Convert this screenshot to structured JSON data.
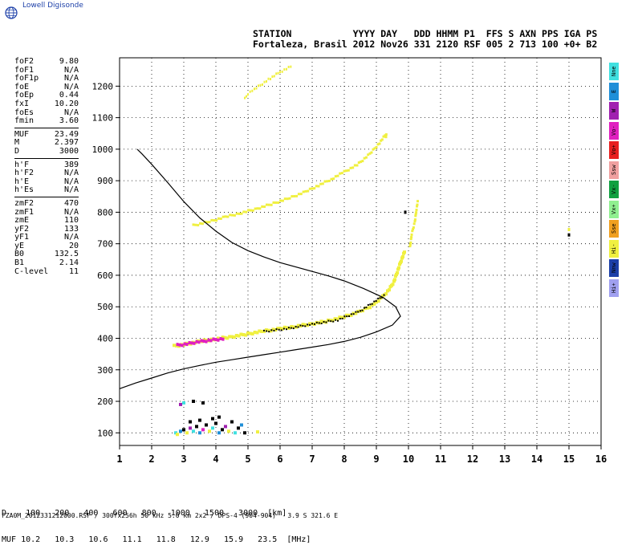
{
  "header": {
    "logo_text": "Lowell Digisonde",
    "row1": "STATION           YYYY DAY   DDD HHMM P1  FFS S AXN PPS IGA PS",
    "row2": "Fortaleza, Brasil 2012 Nov26 331 2120 RSF 005 2 713 100 +0+ B2"
  },
  "params": {
    "group1": [
      {
        "label": "foF2",
        "value": "9.80"
      },
      {
        "label": "foF1",
        "value": "N/A"
      },
      {
        "label": "foF1p",
        "value": "N/A"
      },
      {
        "label": "foE",
        "value": "N/A"
      },
      {
        "label": "foEp",
        "value": "0.44"
      },
      {
        "label": "fxI",
        "value": "10.20"
      },
      {
        "label": "foEs",
        "value": "N/A"
      },
      {
        "label": "fmin",
        "value": "3.60"
      }
    ],
    "group2": [
      {
        "label": "MUF",
        "value": "23.49"
      },
      {
        "label": "M",
        "value": "2.397"
      },
      {
        "label": "D",
        "value": "3000"
      }
    ],
    "group3": [
      {
        "label": "h'F",
        "value": "389"
      },
      {
        "label": "h'F2",
        "value": "N/A"
      },
      {
        "label": "h'E",
        "value": "N/A"
      },
      {
        "label": "h'Es",
        "value": "N/A"
      }
    ],
    "group4": [
      {
        "label": "zmF2",
        "value": "470"
      },
      {
        "label": "zmF1",
        "value": "N/A"
      },
      {
        "label": "zmE",
        "value": "110"
      },
      {
        "label": "yF2",
        "value": "133"
      },
      {
        "label": "yF1",
        "value": "N/A"
      },
      {
        "label": "yE",
        "value": "20"
      },
      {
        "label": "B0",
        "value": "132.5"
      },
      {
        "label": "B1",
        "value": "2.14"
      },
      {
        "label": "C-level",
        "value": "11"
      }
    ]
  },
  "legend": [
    {
      "label": "Nne",
      "color": "#40e0e0"
    },
    {
      "label": "E",
      "color": "#1f8fd8"
    },
    {
      "label": "W",
      "color": "#a020b0"
    },
    {
      "label": "Vo-",
      "color": "#e020c0"
    },
    {
      "label": "Vo+",
      "color": "#e82020"
    },
    {
      "label": "Ssw",
      "color": "#f0a0a0"
    },
    {
      "label": "Vx-",
      "color": "#10a040"
    },
    {
      "label": "Vx+",
      "color": "#90f090"
    },
    {
      "label": "Sse",
      "color": "#f0a020"
    },
    {
      "label": "Hi-",
      "color": "#f0f040"
    },
    {
      "label": "Nnw",
      "color": "#1c3fa8"
    },
    {
      "label": "Hi+",
      "color": "#a0a0f0"
    }
  ],
  "muf_table": {
    "d_label": "D",
    "d_values": [
      "100",
      "200",
      "400",
      "600",
      "800",
      "1000",
      "1500",
      "3000"
    ],
    "d_unit": "[km]",
    "muf_label": "MUF",
    "muf_values": [
      "10.2",
      "10.3",
      "10.6",
      "11.1",
      "11.8",
      "12.9",
      "15.9",
      "23.5"
    ],
    "muf_unit": "[MHz]"
  },
  "footer": "FZA0M_2012331212000.RSF / 300fx256h 50 kHz 5.0 km 2x2 / DPS-4 (904-904)   3.9 S 321.6 E",
  "chart_data": {
    "type": "scatter",
    "xlim": [
      1,
      16
    ],
    "ylim": [
      60,
      1290
    ],
    "xticks": [
      1,
      2,
      3,
      4,
      5,
      6,
      7,
      8,
      9,
      10,
      11,
      12,
      13,
      14,
      15,
      16
    ],
    "yticks": [
      100,
      200,
      300,
      400,
      500,
      600,
      700,
      800,
      900,
      1000,
      1100,
      1200
    ],
    "grid": true,
    "profile_curve": [
      [
        1.0,
        240
      ],
      [
        1.5,
        258
      ],
      [
        2.0,
        274
      ],
      [
        2.5,
        290
      ],
      [
        3.0,
        303
      ],
      [
        3.5,
        314
      ],
      [
        4.0,
        324
      ],
      [
        4.5,
        332
      ],
      [
        5.0,
        340
      ],
      [
        5.5,
        348
      ],
      [
        6.0,
        356
      ],
      [
        6.5,
        364
      ],
      [
        7.0,
        372
      ],
      [
        7.5,
        380
      ],
      [
        8.0,
        390
      ],
      [
        8.5,
        403
      ],
      [
        9.0,
        420
      ],
      [
        9.5,
        442
      ],
      [
        9.75,
        470
      ],
      [
        9.6,
        500
      ],
      [
        9.2,
        530
      ],
      [
        8.6,
        558
      ],
      [
        8.0,
        582
      ],
      [
        7.5,
        598
      ],
      [
        7.0,
        612
      ],
      [
        6.0,
        640
      ],
      [
        5.5,
        658
      ],
      [
        5.0,
        678
      ],
      [
        4.5,
        704
      ],
      [
        4.0,
        740
      ],
      [
        3.5,
        782
      ],
      [
        3.0,
        834
      ],
      [
        2.5,
        894
      ],
      [
        2.0,
        952
      ],
      [
        1.7,
        985
      ],
      [
        1.55,
        1000
      ]
    ],
    "trace_f2_o": {
      "color": "#f0f040",
      "points": [
        [
          2.7,
          375
        ],
        [
          3.0,
          380
        ],
        [
          3.5,
          390
        ],
        [
          4.0,
          398
        ],
        [
          4.5,
          405
        ],
        [
          5.0,
          414
        ],
        [
          5.5,
          423
        ],
        [
          6.0,
          430
        ],
        [
          6.5,
          438
        ],
        [
          7.0,
          446
        ],
        [
          7.5,
          455
        ],
        [
          8.0,
          468
        ],
        [
          8.5,
          485
        ],
        [
          8.8,
          500
        ],
        [
          9.0,
          515
        ],
        [
          9.2,
          532
        ],
        [
          9.4,
          555
        ],
        [
          9.55,
          580
        ],
        [
          9.65,
          610
        ],
        [
          9.75,
          640
        ],
        [
          9.9,
          680
        ]
      ]
    },
    "trace_f2_x": {
      "color": "#f0f040",
      "points": [
        [
          10.05,
          690
        ],
        [
          10.1,
          730
        ],
        [
          10.2,
          770
        ],
        [
          10.25,
          810
        ],
        [
          10.3,
          840
        ]
      ]
    },
    "trace_multi_1": {
      "color": "#f0f040",
      "points": [
        [
          3.3,
          758
        ],
        [
          3.8,
          770
        ],
        [
          4.3,
          785
        ],
        [
          4.8,
          798
        ],
        [
          5.3,
          812
        ],
        [
          5.8,
          828
        ],
        [
          6.3,
          845
        ],
        [
          6.8,
          865
        ],
        [
          7.2,
          885
        ],
        [
          7.6,
          905
        ],
        [
          8.0,
          928
        ],
        [
          8.4,
          950
        ],
        [
          8.8,
          985
        ],
        [
          9.1,
          1020
        ],
        [
          9.35,
          1055
        ]
      ]
    },
    "trace_multi_2": {
      "color": "#f0f040",
      "points": [
        [
          4.9,
          1160
        ],
        [
          5.0,
          1175
        ],
        [
          5.2,
          1190
        ],
        [
          5.7,
          1225
        ],
        [
          6.0,
          1245
        ],
        [
          6.4,
          1265
        ]
      ]
    },
    "trace_magenta": {
      "color": "#e020c0",
      "points": [
        [
          2.8,
          378
        ],
        [
          3.1,
          382
        ],
        [
          3.4,
          388
        ],
        [
          3.7,
          392
        ],
        [
          4.0,
          396
        ],
        [
          4.3,
          399
        ]
      ]
    },
    "trace_dark": {
      "color": "#000000",
      "points": [
        [
          5.5,
          422
        ],
        [
          6.2,
          430
        ],
        [
          7.0,
          445
        ],
        [
          7.8,
          458
        ],
        [
          8.5,
          487
        ],
        [
          9.3,
          540
        ]
      ]
    },
    "e_region_clutter": {
      "points": [
        [
          2.75,
          100,
          "#40e0e0"
        ],
        [
          2.9,
          105,
          "#1f8fd8"
        ],
        [
          3.0,
          110,
          "#000000"
        ],
        [
          3.1,
          100,
          "#f0f040"
        ],
        [
          3.2,
          115,
          "#a020b0"
        ],
        [
          3.3,
          105,
          "#40e0e0"
        ],
        [
          3.4,
          120,
          "#000000"
        ],
        [
          3.5,
          100,
          "#1f8fd8"
        ],
        [
          3.6,
          110,
          "#e020c0"
        ],
        [
          3.7,
          125,
          "#000000"
        ],
        [
          3.8,
          105,
          "#f0f040"
        ],
        [
          3.9,
          115,
          "#40e0e0"
        ],
        [
          4.0,
          130,
          "#000000"
        ],
        [
          4.1,
          100,
          "#1f8fd8"
        ],
        [
          4.2,
          110,
          "#000000"
        ],
        [
          4.3,
          120,
          "#a020b0"
        ],
        [
          4.4,
          105,
          "#f0f040"
        ],
        [
          4.5,
          135,
          "#000000"
        ],
        [
          4.6,
          100,
          "#40e0e0"
        ],
        [
          4.7,
          115,
          "#000000"
        ],
        [
          4.8,
          125,
          "#1f8fd8"
        ],
        [
          3.5,
          140,
          "#000000"
        ],
        [
          3.9,
          145,
          "#000000"
        ],
        [
          4.1,
          150,
          "#000000"
        ],
        [
          3.2,
          135,
          "#000000"
        ],
        [
          2.8,
          95,
          "#f0f040"
        ],
        [
          4.9,
          100,
          "#000000"
        ],
        [
          5.3,
          103,
          "#f0f040"
        ],
        [
          3.0,
          195,
          "#40e0e0"
        ],
        [
          3.3,
          200,
          "#000000"
        ],
        [
          3.6,
          195,
          "#000000"
        ],
        [
          2.9,
          190,
          "#a020b0"
        ]
      ]
    },
    "right_marks": {
      "points": [
        [
          15.0,
          728,
          "#000000"
        ],
        [
          15.0,
          745,
          "#f0f040"
        ],
        [
          9.9,
          800,
          "#000000"
        ],
        [
          9.3,
          1040,
          "#f0f040"
        ]
      ]
    }
  }
}
